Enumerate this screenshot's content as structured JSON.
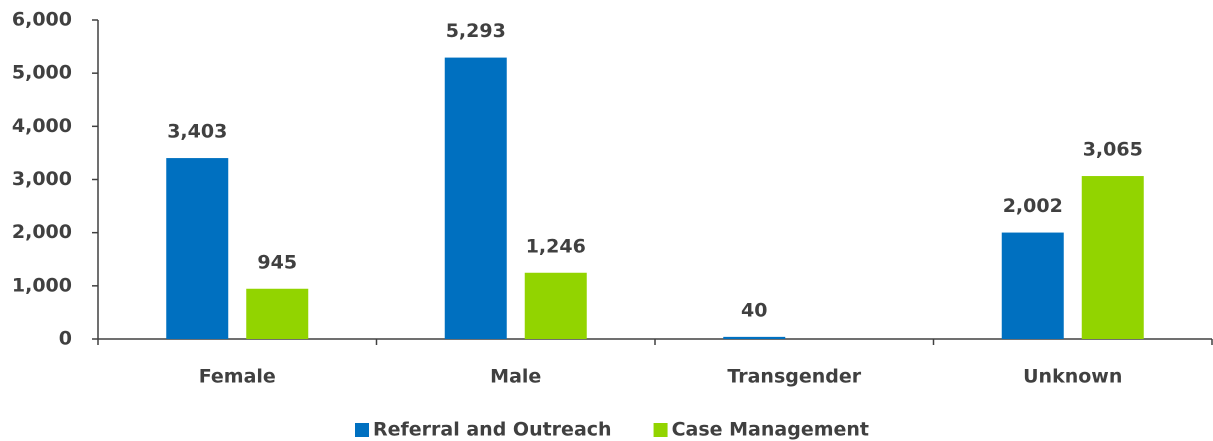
{
  "chart_data": {
    "type": "bar",
    "categories": [
      "Female",
      "Male",
      "Transgender",
      "Unknown"
    ],
    "series": [
      {
        "name": "Referral and Outreach",
        "color": "#0070c0",
        "values": [
          3403,
          5293,
          40,
          2002
        ],
        "value_labels": [
          "3,403",
          "5,293",
          "40",
          "2,002"
        ]
      },
      {
        "name": "Case Management",
        "color": "#92d400",
        "values": [
          945,
          1246,
          null,
          3065
        ],
        "value_labels": [
          "945",
          "1,246",
          null,
          "3,065"
        ]
      }
    ],
    "ylim": [
      0,
      6000
    ],
    "yticks": [
      0,
      {
        "value": 1000,
        "label": "1,000"
      },
      {
        "value": 2000,
        "label": "2,000"
      },
      {
        "value": 3000,
        "label": "3,000"
      },
      {
        "value": 4000,
        "label": "4,000"
      },
      {
        "value": 5000,
        "label": "5,000"
      },
      {
        "value": 6000,
        "label": "6,000"
      }
    ],
    "grid": false,
    "legend": "bottom"
  }
}
